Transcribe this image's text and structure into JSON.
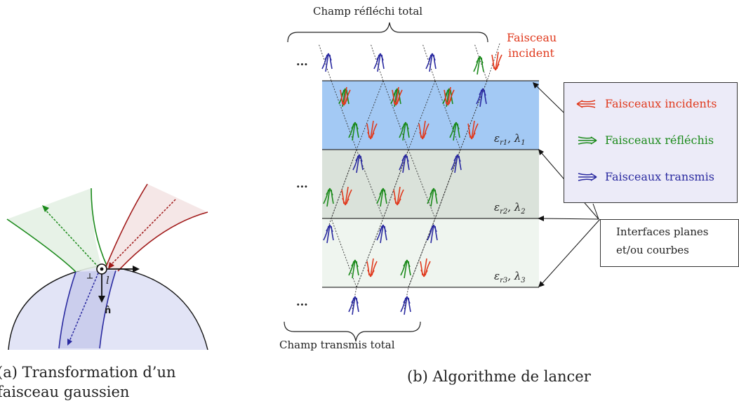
{
  "panel_a": {
    "caption_line1": "(a)  Transformation  d’un",
    "caption_line2": "faisceau gaussien",
    "label_l": "l",
    "label_n": "n̂"
  },
  "panel_b": {
    "caption": "(b) Algorithme de lancer",
    "top_brace_label": "Champ réfléchi total",
    "bottom_brace_label": "Champ transmis total",
    "incident_label_line1": "Faisceau",
    "incident_label_line2": "incident",
    "ellipsis": "...",
    "layers": [
      {
        "eps": "ε",
        "sub": "r1",
        "lam": "λ",
        "lamsub": "1",
        "color": "#a3c9f4"
      },
      {
        "eps": "ε",
        "sub": "r2",
        "lam": "λ",
        "lamsub": "2",
        "color": "#dae2da"
      },
      {
        "eps": "ε",
        "sub": "r3",
        "lam": "λ",
        "lamsub": "3",
        "color": "#eff5ef"
      }
    ],
    "legend": {
      "incident": "Faisceaux incidents",
      "reflected": "Faisceaux réfléchis",
      "transmitted": "Faisceaux transmis"
    },
    "interfaces_line1": "Interfaces planes",
    "interfaces_line2": "et/ou courbes"
  },
  "colors": {
    "incident": "#e03a1e",
    "reflected": "#1b8a1b",
    "transmitted": "#2a2aa0"
  }
}
